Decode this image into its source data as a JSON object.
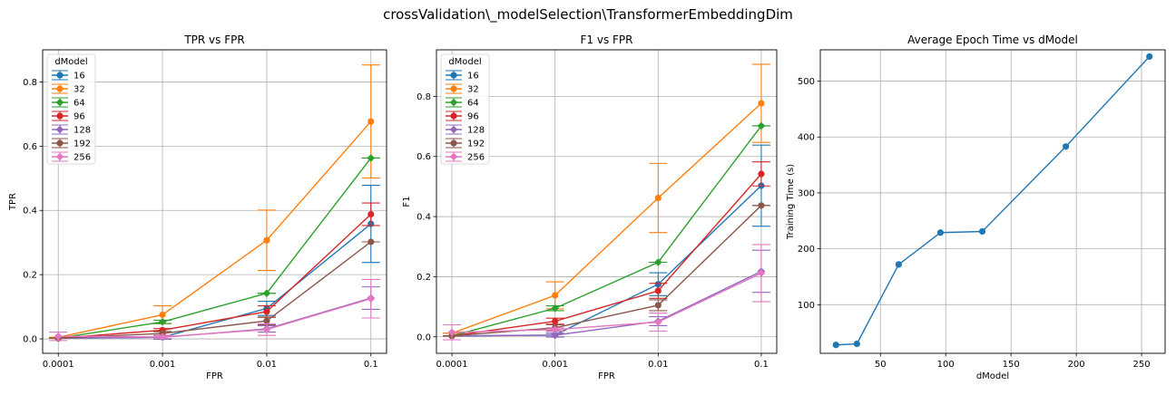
{
  "suptitle": "crossValidation\\_modelSelection\\TransformerEmbeddingDim",
  "colors": [
    "#1f77b4",
    "#ff7f0e",
    "#2ca02c",
    "#d62728",
    "#9467bd",
    "#8c564b",
    "#e377c2"
  ],
  "chart_data": [
    {
      "type": "line",
      "title": "TPR vs FPR",
      "xlabel": "FPR",
      "ylabel": "TPR",
      "x_scale": "log",
      "x": [
        0.0001,
        0.001,
        0.01,
        0.1
      ],
      "x_ticks": [
        "0.0001",
        "0.001",
        "0.01",
        "0.1"
      ],
      "ylim": [
        -0.045,
        0.9
      ],
      "y_ticks": [
        0.0,
        0.2,
        0.4,
        0.6,
        0.8
      ],
      "y_tick_labels": [
        "0.0",
        "0.2",
        "0.4",
        "0.6",
        "0.8"
      ],
      "grid": true,
      "legend": {
        "title": "dModel",
        "placement": "top-left"
      },
      "series": [
        {
          "name": "16",
          "values": [
            0.002,
            0.005,
            0.095,
            0.358
          ],
          "err": [
            0.0,
            0.006,
            0.022,
            0.12
          ]
        },
        {
          "name": "32",
          "values": [
            0.005,
            0.075,
            0.307,
            0.677
          ],
          "err": [
            0.0,
            0.028,
            0.094,
            0.176
          ]
        },
        {
          "name": "64",
          "values": [
            0.002,
            0.053,
            0.142,
            0.563
          ],
          "err": [
            0.0,
            0.005,
            0.0,
            0.0
          ]
        },
        {
          "name": "96",
          "values": [
            0.002,
            0.027,
            0.085,
            0.388
          ],
          "err": [
            0.0,
            0.005,
            0.018,
            0.035
          ]
        },
        {
          "name": "128",
          "values": [
            0.002,
            0.005,
            0.031,
            0.127
          ],
          "err": [
            0.0,
            0.005,
            0.01,
            0.035
          ]
        },
        {
          "name": "192",
          "values": [
            0.002,
            0.017,
            0.056,
            0.302
          ],
          "err": [
            0.0,
            0.006,
            0.012,
            0.0
          ]
        },
        {
          "name": "256",
          "values": [
            0.008,
            0.006,
            0.029,
            0.125
          ],
          "err": [
            0.013,
            0.005,
            0.018,
            0.06
          ]
        }
      ]
    },
    {
      "type": "line",
      "title": "F1 vs FPR",
      "xlabel": "FPR",
      "ylabel": "F1",
      "x_scale": "log",
      "x": [
        0.0001,
        0.001,
        0.01,
        0.1
      ],
      "x_ticks": [
        "0.0001",
        "0.001",
        "0.01",
        "0.1"
      ],
      "ylim": [
        -0.055,
        0.955
      ],
      "y_ticks": [
        0.0,
        0.2,
        0.4,
        0.6,
        0.8
      ],
      "y_tick_labels": [
        "0.0",
        "0.2",
        "0.4",
        "0.6",
        "0.8"
      ],
      "grid": true,
      "legend": {
        "title": "dModel",
        "placement": "top-left"
      },
      "series": [
        {
          "name": "16",
          "values": [
            0.003,
            0.006,
            0.175,
            0.503
          ],
          "err": [
            0.0,
            0.006,
            0.038,
            0.135
          ]
        },
        {
          "name": "32",
          "values": [
            0.012,
            0.138,
            0.462,
            0.777
          ],
          "err": [
            0.0,
            0.045,
            0.115,
            0.13
          ]
        },
        {
          "name": "64",
          "values": [
            0.003,
            0.095,
            0.248,
            0.702
          ],
          "err": [
            0.0,
            0.008,
            0.0,
            0.0
          ]
        },
        {
          "name": "96",
          "values": [
            0.003,
            0.052,
            0.153,
            0.542
          ],
          "err": [
            0.0,
            0.01,
            0.025,
            0.04
          ]
        },
        {
          "name": "128",
          "values": [
            0.003,
            0.005,
            0.052,
            0.218
          ],
          "err": [
            0.0,
            0.006,
            0.015,
            0.07
          ]
        },
        {
          "name": "192",
          "values": [
            0.003,
            0.03,
            0.105,
            0.437
          ],
          "err": [
            0.0,
            0.01,
            0.018,
            0.0
          ]
        },
        {
          "name": "256",
          "values": [
            0.015,
            0.024,
            0.049,
            0.212
          ],
          "err": [
            0.025,
            0.006,
            0.03,
            0.095
          ]
        }
      ]
    },
    {
      "type": "line",
      "title": "Average Epoch Time vs dModel",
      "xlabel": "dModel",
      "ylabel": "Training Time (s)",
      "x": [
        16,
        32,
        64,
        96,
        128,
        192,
        256
      ],
      "xlim": [
        4,
        268
      ],
      "x_ticks": [
        50,
        100,
        150,
        200,
        250
      ],
      "ylim": [
        13,
        556
      ],
      "y_ticks": [
        100,
        200,
        300,
        400,
        500
      ],
      "grid": true,
      "series": [
        {
          "values": [
            28,
            30,
            172,
            229,
            231,
            383,
            544
          ]
        }
      ]
    }
  ]
}
